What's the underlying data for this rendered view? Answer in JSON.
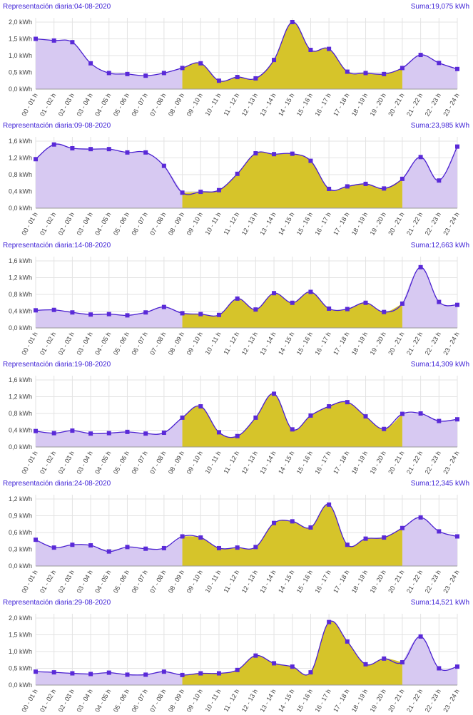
{
  "colors": {
    "title": "#3c1fd6",
    "line": "#4a1fd0",
    "marker": "#5a2ad8",
    "fill_offpeak": "#d7c9f2",
    "fill_peak": "#d6c42a",
    "grid": "#e3e3e3",
    "axis": "#999999"
  },
  "x_categories": [
    "00 - 01 h",
    "01 - 02 h",
    "02 - 03 h",
    "03 - 04 h",
    "04 - 05 h",
    "05 - 06 h",
    "06 - 07 h",
    "07 - 08 h",
    "08 - 09 h",
    "09 - 10 h",
    "10 - 11 h",
    "11 - 12 h",
    "12 - 13 h",
    "13 - 14 h",
    "14 - 15 h",
    "15 - 16 h",
    "16 - 17 h",
    "17 - 18 h",
    "18 - 19 h",
    "19 - 20 h",
    "20 - 21 h",
    "21 - 22 h",
    "22 - 23 h",
    "23 - 24 h"
  ],
  "chart_data": [
    {
      "type": "area",
      "title": "Representación diaria:04-08-2020",
      "total": "Suma:19,075 kWh",
      "ylim": [
        0,
        2.0
      ],
      "yticks": [
        "0,0 kWh",
        "0,5 kWh",
        "1,0 kWh",
        "1,5 kWh",
        "2,0 kWh"
      ],
      "peak_range_hours": [
        8,
        20
      ],
      "values": [
        1.5,
        1.45,
        1.4,
        0.77,
        0.48,
        0.45,
        0.4,
        0.48,
        0.63,
        0.77,
        0.25,
        0.36,
        0.32,
        0.87,
        2.0,
        1.17,
        1.2,
        0.52,
        0.48,
        0.45,
        0.63,
        1.02,
        0.78,
        0.6
      ]
    },
    {
      "type": "area",
      "title": "Representación diaria:09-08-2020",
      "total": "Suma:23,985 kWh",
      "ylim": [
        0,
        1.6
      ],
      "yticks": [
        "0,0 kWh",
        "0,4 kWh",
        "0,8 kWh",
        "1,2 kWh",
        "1,6 kWh"
      ],
      "peak_range_hours": [
        8,
        20
      ],
      "values": [
        1.17,
        1.52,
        1.43,
        1.41,
        1.41,
        1.33,
        1.33,
        1.01,
        0.37,
        0.39,
        0.43,
        0.82,
        1.31,
        1.29,
        1.3,
        1.13,
        0.46,
        0.52,
        0.58,
        0.47,
        0.7,
        1.22,
        0.66,
        1.47
      ]
    },
    {
      "type": "area",
      "title": "Representación diaria:14-08-2020",
      "total": "Suma:12,663 kWh",
      "ylim": [
        0,
        1.6
      ],
      "yticks": [
        "0,0 kWh",
        "0,4 kWh",
        "0,8 kWh",
        "1,2 kWh",
        "1,6 kWh"
      ],
      "peak_range_hours": [
        8,
        20
      ],
      "values": [
        0.42,
        0.43,
        0.37,
        0.32,
        0.33,
        0.3,
        0.37,
        0.5,
        0.35,
        0.33,
        0.31,
        0.7,
        0.44,
        0.83,
        0.6,
        0.86,
        0.46,
        0.45,
        0.6,
        0.38,
        0.58,
        1.45,
        0.62,
        0.55
      ]
    },
    {
      "type": "area",
      "title": "Representación diaria:19-08-2020",
      "total": "Suma:14,309 kWh",
      "ylim": [
        0,
        1.6
      ],
      "yticks": [
        "0,0 kWh",
        "0,4 kWh",
        "0,8 kWh",
        "1,2 kWh",
        "1,6 kWh"
      ],
      "peak_range_hours": [
        8,
        20
      ],
      "values": [
        0.38,
        0.33,
        0.39,
        0.32,
        0.33,
        0.36,
        0.32,
        0.34,
        0.7,
        0.97,
        0.35,
        0.26,
        0.7,
        1.27,
        0.42,
        0.75,
        0.97,
        1.07,
        0.73,
        0.43,
        0.79,
        0.8,
        0.62,
        0.66
      ]
    },
    {
      "type": "area",
      "title": "Representación diaria:24-08-2020",
      "total": "Suma:12,345 kWh",
      "ylim": [
        0,
        1.2
      ],
      "yticks": [
        "0,0 kWh",
        "0,3 kWh",
        "0,6 kWh",
        "0,9 kWh",
        "1,2 kWh"
      ],
      "peak_range_hours": [
        8,
        20
      ],
      "values": [
        0.47,
        0.33,
        0.38,
        0.37,
        0.26,
        0.34,
        0.31,
        0.32,
        0.53,
        0.51,
        0.32,
        0.33,
        0.34,
        0.77,
        0.8,
        0.69,
        1.1,
        0.38,
        0.49,
        0.51,
        0.68,
        0.87,
        0.62,
        0.53
      ]
    },
    {
      "type": "area",
      "title": "Representación diaria:29-08-2020",
      "total": "Suma:14,521 kWh",
      "ylim": [
        0,
        2.0
      ],
      "yticks": [
        "0,0 kWh",
        "0,5 kWh",
        "1,0 kWh",
        "1,5 kWh",
        "2,0 kWh"
      ],
      "peak_range_hours": [
        8,
        20
      ],
      "values": [
        0.4,
        0.38,
        0.35,
        0.33,
        0.37,
        0.31,
        0.31,
        0.4,
        0.3,
        0.35,
        0.35,
        0.45,
        0.88,
        0.65,
        0.55,
        0.38,
        1.88,
        1.3,
        0.62,
        0.79,
        0.68,
        1.45,
        0.5,
        0.55
      ]
    }
  ]
}
